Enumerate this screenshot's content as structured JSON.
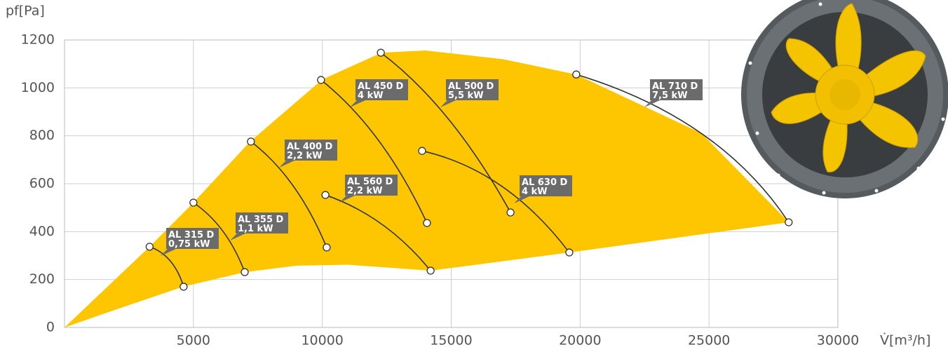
{
  "chart_data": {
    "type": "fan-curves",
    "y_label": "pf[Pa]",
    "x_label": "V̇[m³/h]",
    "xlim": [
      0,
      30000
    ],
    "ylim": [
      0,
      1200
    ],
    "xticks": [
      5000,
      10000,
      15000,
      20000,
      25000,
      30000
    ],
    "yticks": [
      0,
      200,
      400,
      600,
      800,
      1000,
      1200
    ],
    "grid": true,
    "envelope": {
      "color": "#fec600",
      "x": [
        0,
        3300,
        5000,
        7200,
        10000,
        12300,
        14000,
        17000,
        19850,
        24700,
        28100,
        19600,
        14200,
        11000,
        9000,
        7000,
        4600,
        2000,
        0
      ],
      "y": [
        0,
        337,
        521,
        776,
        1035,
        1147,
        1156,
        1120,
        1056,
        811,
        439,
        313,
        237,
        262,
        258,
        231,
        170,
        75,
        0
      ]
    },
    "line_color": "#333333",
    "label_color": "#6b6b6b",
    "series": [
      {
        "name": "AL 315 D",
        "power": "0,75 kW",
        "x": [
          3300,
          4100,
          4620
        ],
        "values": [
          337,
          278,
          170
        ]
      },
      {
        "name": "AL 355 D",
        "power": "1,1 kW",
        "x": [
          5000,
          6150,
          6990
        ],
        "values": [
          521,
          401,
          231
        ]
      },
      {
        "name": "AL 400 D",
        "power": "2,2 kW",
        "x": [
          7230,
          8870,
          10170
        ],
        "values": [
          776,
          591,
          334
        ]
      },
      {
        "name": "AL 450 D",
        "power": "4 kW",
        "x": [
          9950,
          12180,
          14060
        ],
        "values": [
          1033,
          781,
          436
        ]
      },
      {
        "name": "AL 500 D",
        "power": "5,5 kW",
        "x": [
          12270,
          14900,
          17300
        ],
        "values": [
          1147,
          869,
          480
        ]
      },
      {
        "name": "AL 560 D",
        "power": "2,2 kW",
        "x": [
          10120,
          12320,
          14200
        ],
        "values": [
          553,
          430,
          237
        ]
      },
      {
        "name": "AL 630 D",
        "power": "4 kW",
        "x": [
          13870,
          16940,
          19580
        ],
        "values": [
          737,
          591,
          313
        ]
      },
      {
        "name": "AL 710 D",
        "power": "7,5 kW",
        "x": [
          19850,
          24690,
          28090
        ],
        "values": [
          1056,
          811,
          439
        ]
      }
    ]
  }
}
